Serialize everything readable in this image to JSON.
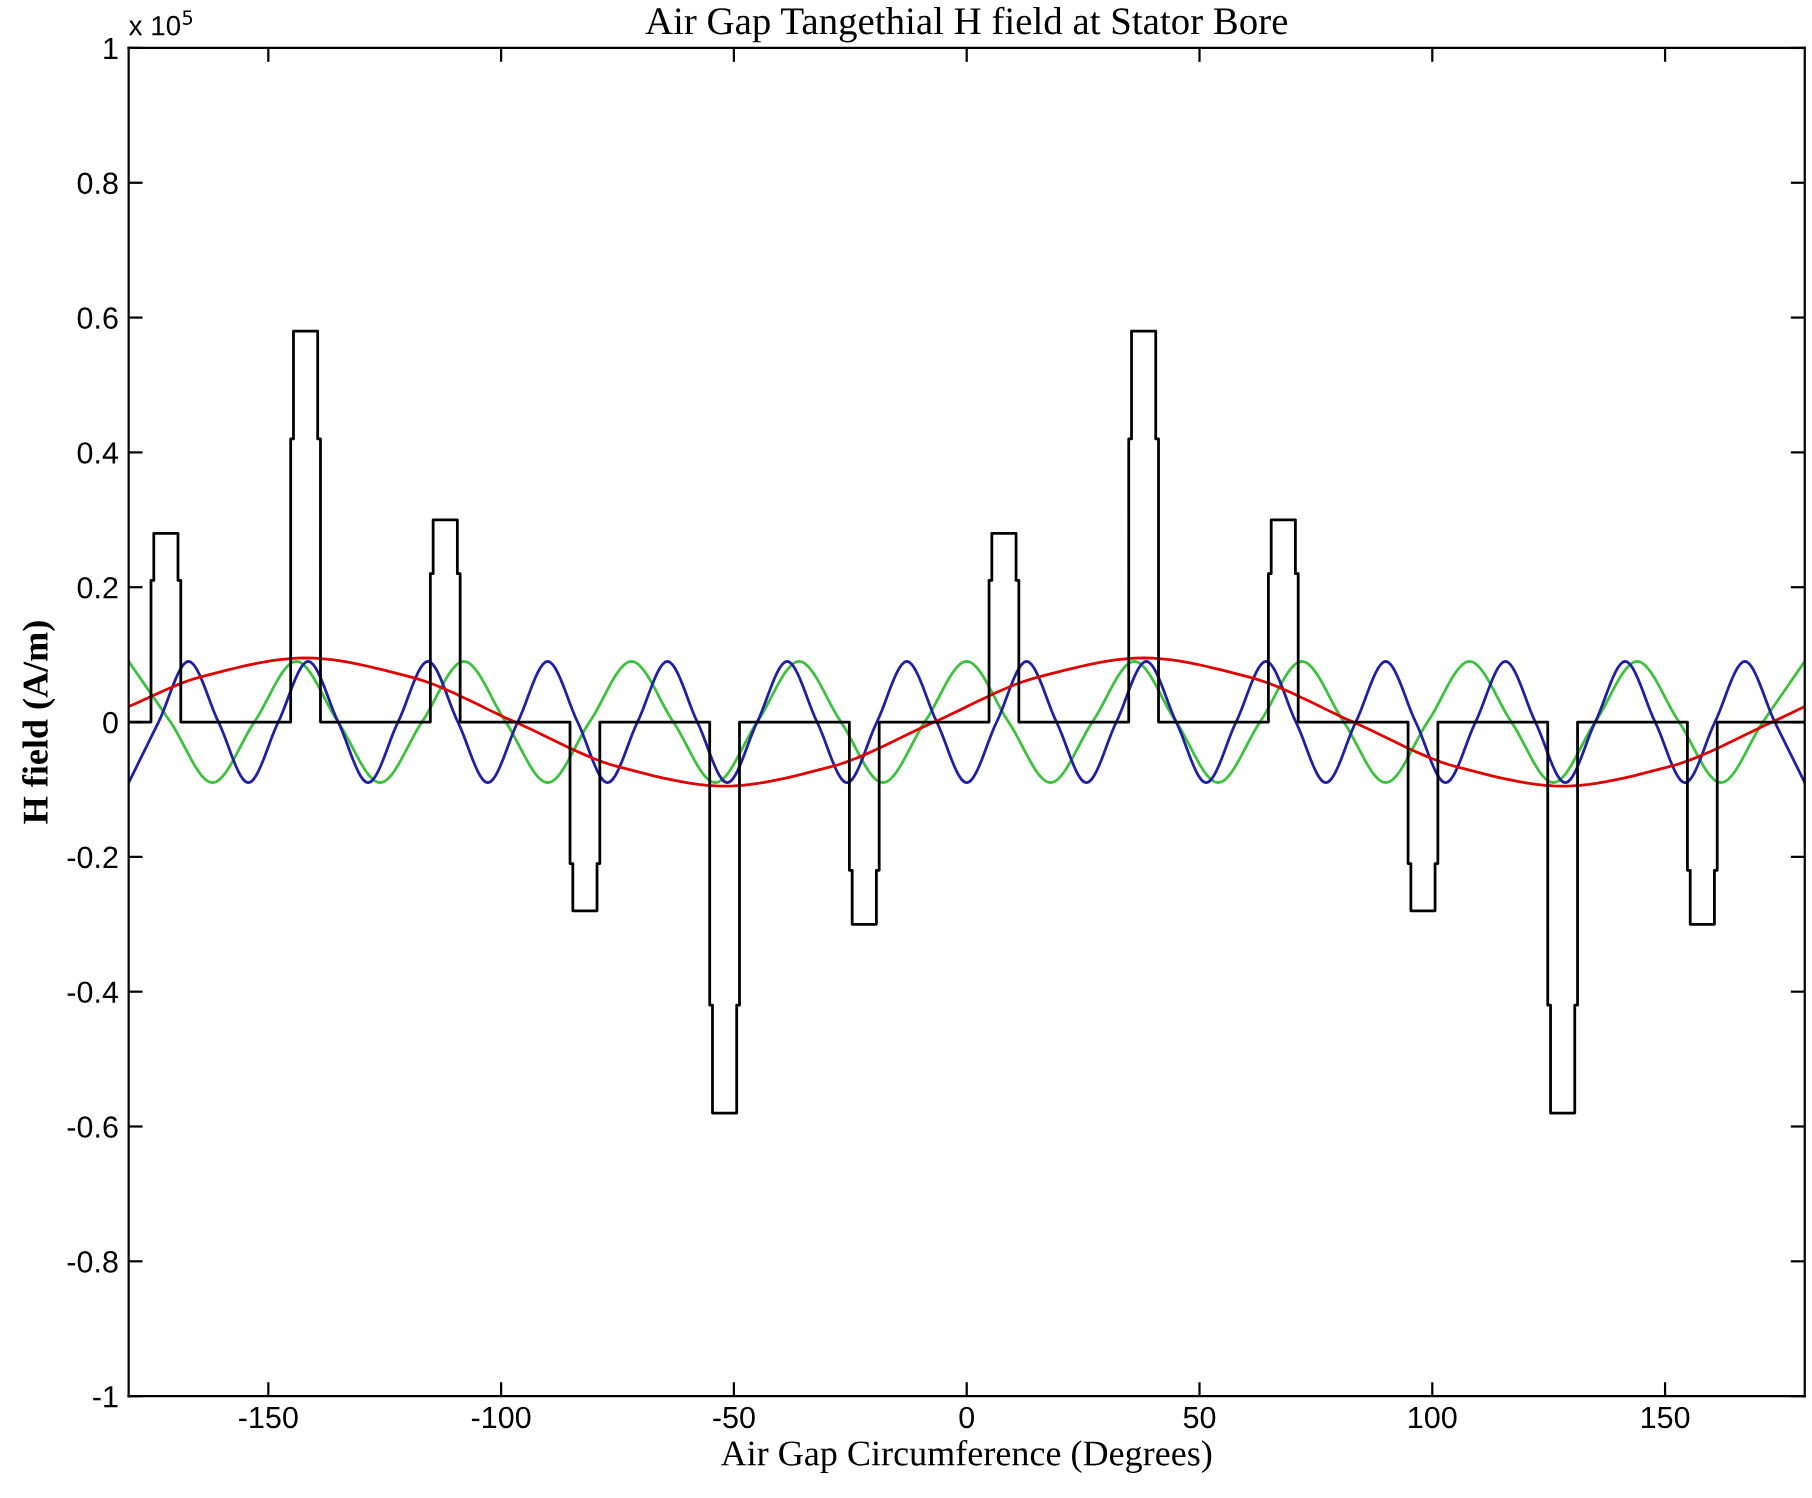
{
  "chart_data": {
    "type": "line",
    "title": "Air Gap Tangethial H field at Stator Bore",
    "xlabel": "Air Gap Circumference (Degrees)",
    "ylabel": "H field (A/m)",
    "annotations": [
      "x 10$^{5}$"
    ],
    "xlim": [
      -180,
      180
    ],
    "xticks": [
      -150,
      -100,
      -50,
      0,
      50,
      100,
      150
    ],
    "ylim": [
      -1,
      1
    ],
    "yticks": [
      -1,
      -0.8,
      -0.6,
      -0.4,
      -0.2,
      0,
      0.2,
      0.4,
      0.6,
      0.8,
      1
    ],
    "grid": false,
    "legend": false,
    "marker": "none",
    "line_style": "solid",
    "series": [
      {
        "color": "#40c040",
        "x": [
          -180,
          -171,
          -162,
          -153,
          -144,
          -135,
          -126,
          -117,
          -108,
          -99,
          -90,
          -81,
          -72,
          -63,
          -54,
          -45,
          -36,
          -27,
          -18,
          -9,
          0,
          9,
          18,
          27,
          36,
          45,
          54,
          63,
          72,
          81,
          90,
          99,
          108,
          117,
          126,
          135,
          144,
          153,
          162,
          171,
          180
        ],
        "values": [
          0.09,
          0,
          -0.09,
          0,
          0.09,
          0,
          -0.09,
          0,
          0.09,
          0,
          -0.09,
          0,
          0.09,
          0,
          -0.09,
          0,
          0.09,
          0,
          -0.09,
          0,
          0.09,
          0,
          -0.09,
          0,
          0.09,
          0,
          -0.09,
          0,
          0.09,
          0,
          -0.09,
          0,
          0.09,
          0,
          -0.09,
          0,
          0.09,
          0,
          -0.09,
          0,
          0.09
        ]
      },
      {
        "color": "#2020a0",
        "x": [
          -180,
          -173.57,
          -167.14,
          -160.71,
          -154.29,
          -147.86,
          -141.43,
          -135,
          -128.57,
          -122.14,
          -115.71,
          -109.29,
          -102.86,
          -96.43,
          -90,
          -83.57,
          -77.14,
          -70.71,
          -64.29,
          -57.86,
          -51.43,
          -45,
          -38.57,
          -32.14,
          -25.71,
          -19.29,
          -12.86,
          -6.43,
          0,
          6.43,
          12.86,
          19.29,
          25.71,
          32.14,
          38.57,
          45,
          51.43,
          57.86,
          64.29,
          70.71,
          77.14,
          83.57,
          90,
          96.43,
          102.86,
          109.29,
          115.71,
          122.14,
          128.57,
          135,
          141.43,
          147.86,
          154.29,
          160.71,
          167.14,
          173.57,
          180
        ],
        "values": [
          -0.09,
          0,
          0.09,
          0,
          -0.09,
          0,
          0.09,
          0,
          -0.09,
          0,
          0.09,
          0,
          -0.09,
          0,
          0.09,
          0,
          -0.09,
          0,
          0.09,
          0,
          -0.09,
          0,
          0.09,
          0,
          -0.09,
          0,
          0.09,
          0,
          -0.09,
          0,
          0.09,
          0,
          -0.09,
          0,
          0.09,
          0,
          -0.09,
          0,
          0.09,
          0,
          -0.09,
          0,
          0.09,
          0,
          -0.09,
          0,
          0.09,
          0,
          -0.09,
          0,
          0.09,
          0,
          -0.09,
          0,
          0.09,
          0,
          -0.09
        ]
      },
      {
        "color": "#e00000",
        "x": [
          -180,
          -164.5,
          -142,
          -119.5,
          -97,
          -74.5,
          -52,
          -29.5,
          -7,
          15.5,
          38,
          60.5,
          83,
          105.5,
          128,
          150.5,
          173,
          180
        ],
        "values": [
          0.023,
          0.067,
          0.095,
          0.067,
          0,
          -0.067,
          -0.095,
          -0.067,
          0,
          0.067,
          0.095,
          0.067,
          0,
          -0.067,
          -0.095,
          -0.067,
          0,
          0.023
        ]
      },
      {
        "color": "#000000",
        "x": [
          -180,
          -175.2,
          -175.2,
          -174.6,
          -174.6,
          -169.4,
          -169.4,
          -168.8,
          -168.8,
          -145.2,
          -145.2,
          -144.6,
          -144.6,
          -139.4,
          -139.4,
          -138.8,
          -138.8,
          -115.2,
          -115.2,
          -114.6,
          -114.6,
          -109.4,
          -109.4,
          -108.8,
          -108.8,
          -85.2,
          -85.2,
          -84.6,
          -84.6,
          -79.4,
          -79.4,
          -78.8,
          -78.8,
          -55.2,
          -55.2,
          -54.6,
          -54.6,
          -49.4,
          -49.4,
          -48.8,
          -48.8,
          -25.2,
          -25.2,
          -24.6,
          -24.6,
          -19.4,
          -19.4,
          -18.8,
          -18.8,
          4.8,
          4.8,
          5.4,
          5.4,
          10.6,
          10.6,
          11.2,
          11.2,
          34.8,
          34.8,
          35.4,
          35.4,
          40.6,
          40.6,
          41.2,
          41.2,
          64.8,
          64.8,
          65.4,
          65.4,
          70.6,
          70.6,
          71.2,
          71.2,
          94.8,
          94.8,
          95.4,
          95.4,
          100.6,
          100.6,
          101.2,
          101.2,
          124.8,
          124.8,
          125.4,
          125.4,
          130.6,
          130.6,
          131.2,
          131.2,
          154.8,
          154.8,
          155.4,
          155.4,
          160.6,
          160.6,
          161.2,
          161.2,
          180
        ],
        "values": [
          0,
          0,
          0.21,
          0.21,
          0.28,
          0.28,
          0.21,
          0.21,
          0,
          0,
          0.42,
          0.42,
          0.58,
          0.58,
          0.42,
          0.42,
          0,
          0,
          0.22,
          0.22,
          0.3,
          0.3,
          0.22,
          0.22,
          0,
          0,
          -0.21,
          -0.21,
          -0.28,
          -0.28,
          -0.21,
          -0.21,
          0,
          0,
          -0.42,
          -0.42,
          -0.58,
          -0.58,
          -0.42,
          -0.42,
          0,
          0,
          -0.22,
          -0.22,
          -0.3,
          -0.3,
          -0.22,
          -0.22,
          0,
          0,
          0.21,
          0.21,
          0.28,
          0.28,
          0.21,
          0.21,
          0,
          0,
          0.42,
          0.42,
          0.58,
          0.58,
          0.42,
          0.42,
          0,
          0,
          0.22,
          0.22,
          0.3,
          0.3,
          0.22,
          0.22,
          0,
          0,
          -0.21,
          -0.21,
          -0.28,
          -0.28,
          -0.21,
          -0.21,
          0,
          0,
          -0.42,
          -0.42,
          -0.58,
          -0.58,
          -0.42,
          -0.42,
          0,
          0,
          -0.22,
          -0.22,
          -0.3,
          -0.3,
          -0.22,
          -0.22,
          0,
          0
        ]
      }
    ]
  }
}
